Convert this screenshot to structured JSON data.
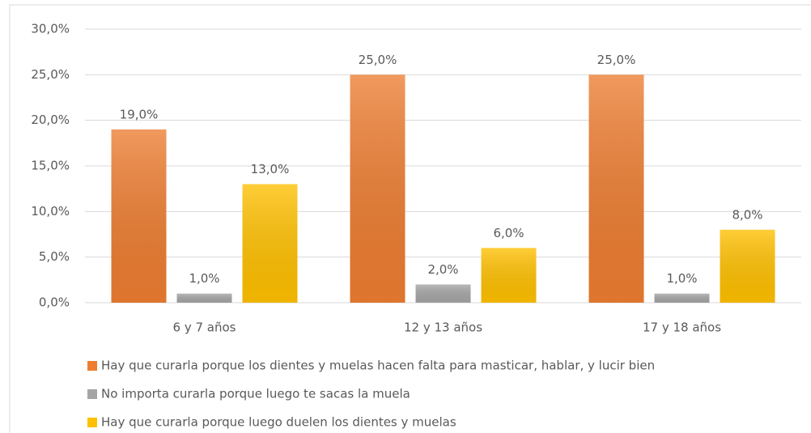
{
  "chart_data": {
    "type": "bar",
    "categories": [
      "6 y 7 años",
      "12 y 13 años",
      "17 y 18 años"
    ],
    "series": [
      {
        "name": "Hay que curarla porque los dientes y muelas hacen falta para masticar, hablar, y lucir bien",
        "color": "#ed7d31",
        "values": [
          19,
          25,
          25
        ],
        "value_labels": [
          "19,0%",
          "25,0%",
          "25,0%"
        ]
      },
      {
        "name": "No importa curarla porque luego te sacas la muela",
        "color": "#a5a5a5",
        "values": [
          1,
          2,
          1
        ],
        "value_labels": [
          "1,0%",
          "2,0%",
          "1,0%"
        ]
      },
      {
        "name": "Hay que curarla porque luego duelen los dientes y muelas",
        "color": "#ffc000",
        "values": [
          13,
          6,
          8
        ],
        "value_labels": [
          "13,0%",
          "6,0%",
          "8,0%"
        ]
      }
    ],
    "ylim": [
      0,
      30
    ],
    "yticks": [
      {
        "value": 0,
        "label": "0,0%"
      },
      {
        "value": 5,
        "label": "5,0%"
      },
      {
        "value": 10,
        "label": "10,0%"
      },
      {
        "value": 15,
        "label": "15,0%"
      },
      {
        "value": 20,
        "label": "20,0%"
      },
      {
        "value": 25,
        "label": "25,0%"
      },
      {
        "value": 30,
        "label": "30,0%"
      }
    ],
    "grid": true,
    "legend": "bottom"
  }
}
